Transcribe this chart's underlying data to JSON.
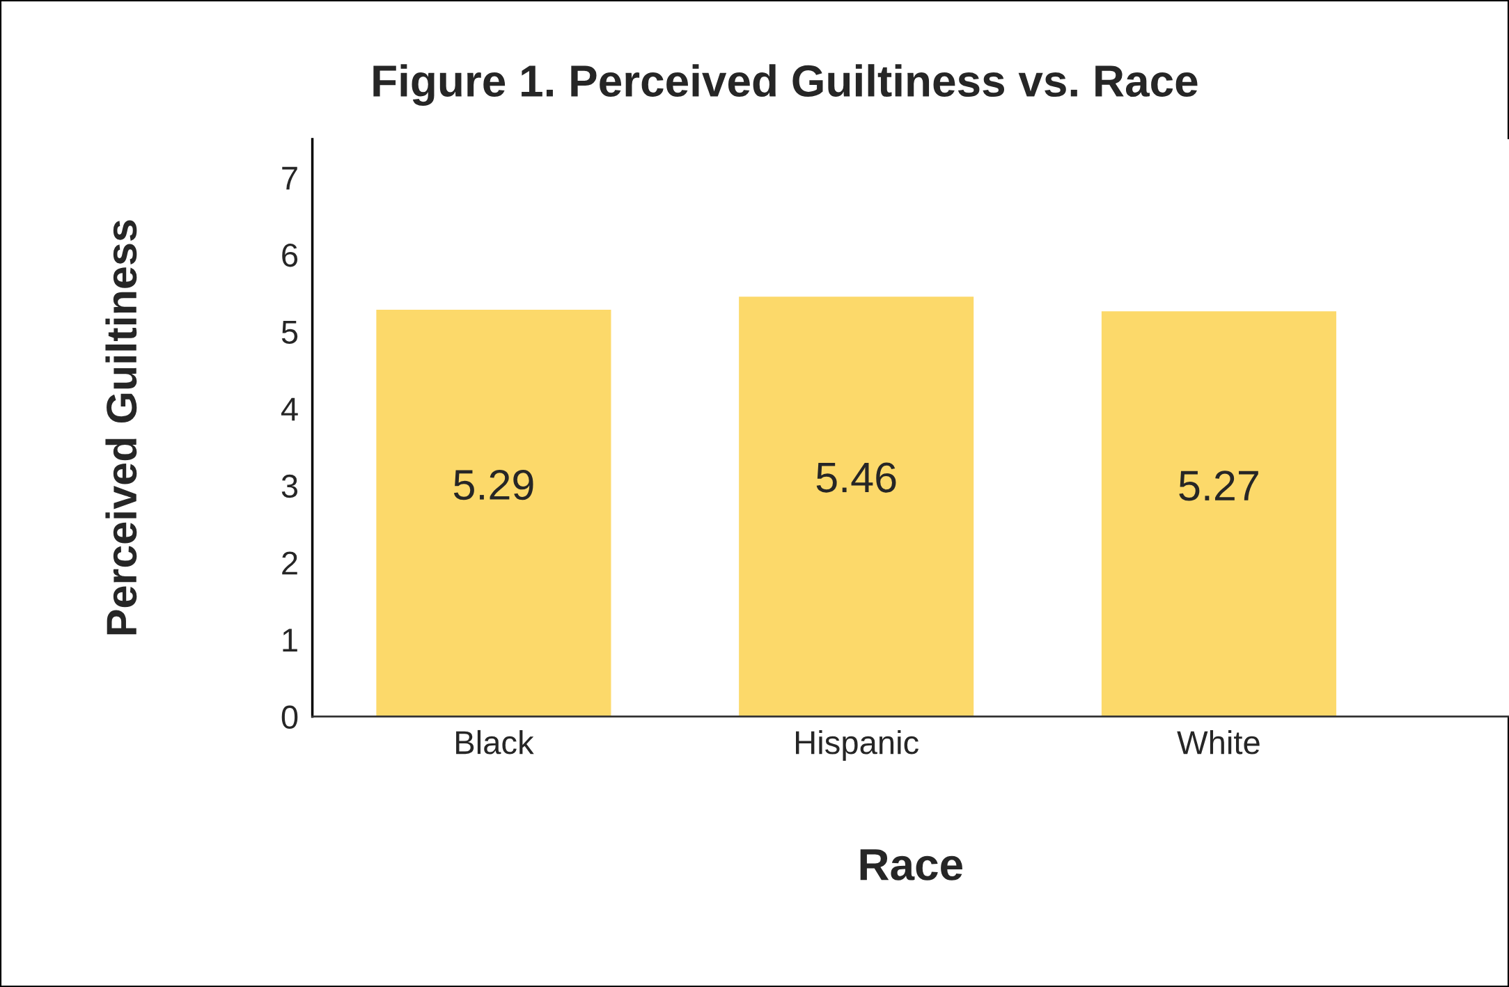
{
  "chart_data": {
    "type": "bar",
    "title": "Figure 1. Perceived Guiltiness vs. Race",
    "xlabel": "Race",
    "ylabel": "Perceived Guiltiness",
    "categories": [
      "Black",
      "Hispanic",
      "White"
    ],
    "values": [
      5.29,
      5.46,
      5.27
    ],
    "color": "#fcd96a",
    "ylim": [
      0,
      7.5
    ],
    "yticks": [
      0,
      1,
      2,
      3,
      4,
      5,
      6,
      7
    ],
    "grid": false,
    "data_labels": true
  }
}
